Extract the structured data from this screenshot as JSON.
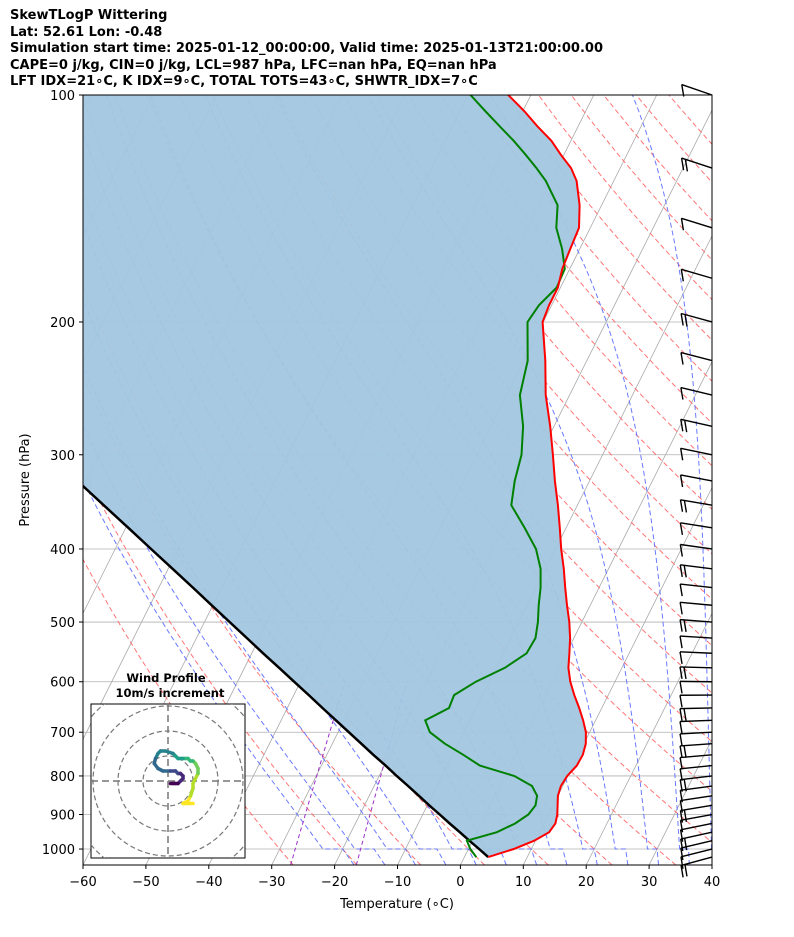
{
  "header": {
    "line1": "SkewTLogP Wittering",
    "line2": "Lat: 52.61   Lon: -0.48",
    "line3": "Simulation start time: 2025-01-12_00:00:00, Valid time: 2025-01-13T21:00:00.00",
    "line4": "CAPE=0 j/kg, CIN=0 j/kg, LCL=987 hPa, LFC=nan hPa, EQ=nan hPa",
    "line5": "LFT IDX=21∘C, K IDX=9∘C, TOTAL TOTS=43∘C, SHWTR_IDX=7∘C"
  },
  "chart_data": {
    "type": "skewt-logp",
    "xlabel": "Temperature (∘C)",
    "ylabel": "Pressure (hPa)",
    "xlim": [
      -60,
      40
    ],
    "ylim": [
      1050,
      100
    ],
    "x_ticks": [
      "−60",
      "−50",
      "−40",
      "−30",
      "−20",
      "−10",
      "0",
      "10",
      "20",
      "30",
      "40"
    ],
    "x_tick_values": [
      -60,
      -50,
      -40,
      -30,
      -20,
      -10,
      0,
      10,
      20,
      30,
      40
    ],
    "y_ticks": [
      "100",
      "200",
      "300",
      "400",
      "500",
      "600",
      "700",
      "800",
      "900",
      "1000"
    ],
    "y_tick_values": [
      100,
      200,
      300,
      400,
      500,
      600,
      700,
      800,
      900,
      1000
    ],
    "grid": true,
    "log_y": true,
    "colors": {
      "temperature": "#ff0000",
      "dewpoint": "#008000",
      "parcel": "#000000",
      "shading": "#a2c7e0",
      "dry_adiabats": "#ff6666",
      "moist_adiabats": "#5a6cff",
      "mixing_ratio": "#9b30c8",
      "isotherms": "#aaaaaa"
    },
    "series": [
      {
        "role": "temperature",
        "pressure": [
          1025,
          1000,
          975,
          950,
          925,
          900,
          875,
          850,
          825,
          800,
          775,
          750,
          725,
          700,
          675,
          650,
          625,
          600,
          575,
          550,
          525,
          500,
          475,
          450,
          425,
          400,
          375,
          350,
          325,
          300,
          275,
          250,
          225,
          200,
          190,
          180,
          170,
          160,
          150,
          140,
          130,
          125,
          120,
          115,
          110,
          105,
          100
        ],
        "temp": [
          3.8,
          7.2,
          9.8,
          11.5,
          11.8,
          11.4,
          10.7,
          10.0,
          9.7,
          9.9,
          10.6,
          10.7,
          10.3,
          9.4,
          8.0,
          6.4,
          4.6,
          2.9,
          1.5,
          0.5,
          -0.6,
          -2.0,
          -3.7,
          -5.4,
          -7.1,
          -9.1,
          -11.0,
          -13.1,
          -15.5,
          -17.9,
          -20.6,
          -23.8,
          -26.6,
          -30.1,
          -30.4,
          -30.4,
          -31.2,
          -31.5,
          -31.8,
          -33.5,
          -35.9,
          -37.8,
          -40.5,
          -43.1,
          -46.5,
          -49.8,
          -53.6
        ]
      },
      {
        "role": "dewpoint",
        "pressure": [
          1025,
          1000,
          975,
          950,
          925,
          900,
          875,
          850,
          825,
          800,
          775,
          750,
          725,
          700,
          675,
          650,
          625,
          600,
          575,
          550,
          525,
          500,
          475,
          450,
          425,
          400,
          375,
          350,
          325,
          300,
          275,
          250,
          225,
          200,
          190,
          180,
          170,
          160,
          150,
          140,
          130,
          125,
          120,
          115,
          110,
          105,
          100
        ],
        "temp": [
          1.9,
          0.3,
          -0.9,
          3.2,
          5.4,
          6.8,
          7.2,
          6.7,
          5.1,
          1.5,
          -4.8,
          -8.3,
          -12.1,
          -15.4,
          -17.1,
          -14.3,
          -14.5,
          -12.1,
          -8.6,
          -6.3,
          -6.1,
          -7.0,
          -8.2,
          -9.3,
          -10.8,
          -13.1,
          -16.6,
          -20.5,
          -21.9,
          -22.9,
          -24.9,
          -27.9,
          -29.4,
          -32.5,
          -32.0,
          -30.6,
          -30.8,
          -32.8,
          -35.4,
          -37.0,
          -40.8,
          -43.3,
          -46.1,
          -49.1,
          -52.5,
          -56.0,
          -59.6
        ]
      },
      {
        "role": "parcel",
        "pressure": [
          1025,
          1000,
          975,
          950,
          925,
          900,
          875,
          850,
          825,
          800,
          775,
          750,
          725,
          700,
          675,
          650,
          625,
          600,
          575,
          550,
          525,
          500,
          475,
          450,
          425,
          400,
          375,
          350,
          325,
          300,
          275,
          250,
          225,
          200,
          175,
          150,
          125,
          100
        ],
        "temp": [
          3.8,
          1.7,
          -0.5,
          -2.7,
          -5.0,
          -7.3,
          -9.7,
          -12.1,
          -14.6,
          -17.2,
          -19.8,
          -22.6,
          -25.4,
          -28.3,
          -31.3,
          -34.4,
          -37.6,
          -41.0,
          -44.5,
          -48.2,
          -52.0,
          -56.0,
          -60.2,
          -64.6,
          -69.3,
          -74.3,
          -79.6,
          -85.3,
          -91.4,
          -98.1,
          -105.5,
          -113.7,
          -123.0,
          -133.7,
          -146.2,
          -161.2,
          -179.8,
          -204.4
        ]
      }
    ],
    "shaded_region": "between parcel profile and temperature profile",
    "wind_barbs_side": "right",
    "hodograph": {
      "title": "Wind Profile",
      "subtitle": "10m/s increment",
      "ring_increment_ms": 10,
      "colormap": "viridis",
      "u": [
        10,
        7,
        6,
        8,
        9,
        10,
        10,
        11,
        12,
        12,
        11,
        10,
        9,
        8,
        7,
        6,
        5,
        4,
        2,
        -1,
        -3,
        -4,
        -5,
        -5.5,
        -4,
        -2,
        1,
        3,
        4,
        5,
        6,
        6,
        5,
        4,
        3,
        2,
        1
      ],
      "v": [
        -9,
        -9,
        -9,
        -8,
        -6,
        -3,
        -1,
        1,
        3,
        5,
        7,
        8,
        8,
        9,
        9,
        9,
        9,
        9,
        11,
        12,
        12,
        11,
        9,
        7,
        5,
        4,
        4,
        4,
        3,
        3,
        2,
        1,
        0,
        -1,
        -1,
        -1,
        -1
      ]
    }
  }
}
